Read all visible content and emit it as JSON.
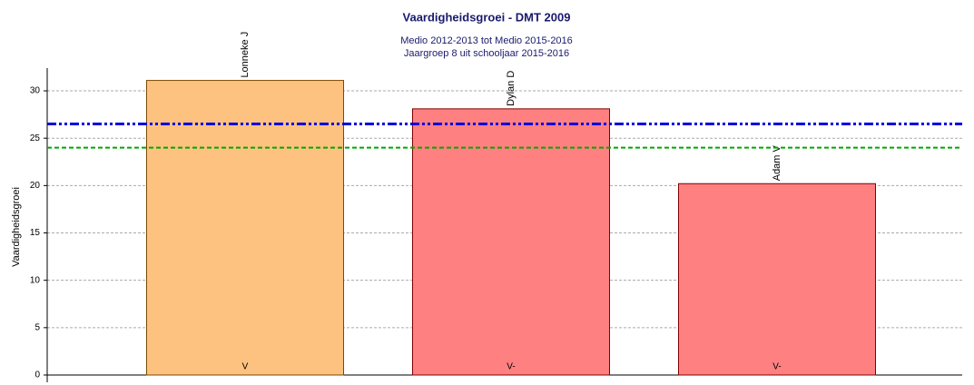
{
  "chart_data": {
    "type": "bar",
    "title": "Vaardigheidsgroei - DMT 2009",
    "subtitle": [
      "Medio 2012-2013 tot Medio 2015-2016",
      "Jaargroep 8 uit schooljaar 2015-2016"
    ],
    "ylabel": "Vaardigheidsgroei",
    "categories": [
      "Lonneke J",
      "Dylan D",
      "Adam V"
    ],
    "values": [
      31.1,
      28.1,
      20.2
    ],
    "grades": [
      "V",
      "V-",
      "V-"
    ],
    "colors": [
      "#fec280",
      "#ff8080",
      "#ff8080"
    ],
    "edge_colors": [
      "#7a4a00",
      "#800000",
      "#800000"
    ],
    "reference_lines": [
      {
        "value": 26.5,
        "color": "#0000e0",
        "style": "dash-dot"
      },
      {
        "value": 24,
        "color": "#00a800",
        "style": "dashed"
      }
    ],
    "ylim": [
      0,
      32.4
    ],
    "yticks": [
      0,
      5,
      10,
      15,
      20,
      25,
      30
    ],
    "grid": true
  }
}
